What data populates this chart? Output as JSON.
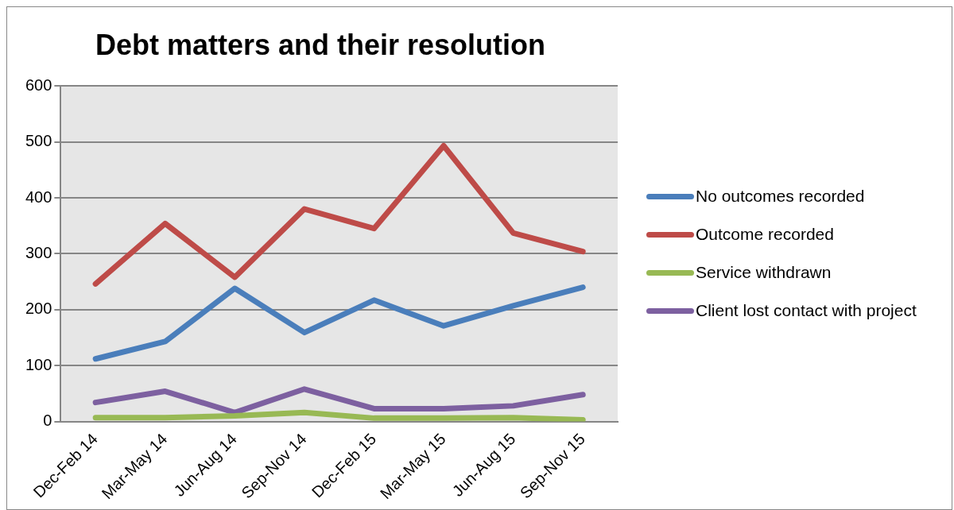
{
  "chart_data": {
    "type": "line",
    "title": "Debt matters and their resolution",
    "categories": [
      "Dec-Feb 14",
      "Mar-May 14",
      "Jun-Aug 14",
      "Sep-Nov 14",
      "Dec-Feb 15",
      "Mar-May 15",
      "Jun-Aug 15",
      "Sep-Nov 15"
    ],
    "series": [
      {
        "name": "No outcomes recorded",
        "color": "#4a7ebb",
        "values": [
          112,
          143,
          238,
          159,
          217,
          171,
          207,
          240
        ]
      },
      {
        "name": "Outcome recorded",
        "color": "#be4b48",
        "values": [
          246,
          354,
          258,
          380,
          345,
          493,
          337,
          304
        ]
      },
      {
        "name": "Service withdrawn",
        "color": "#98b954",
        "values": [
          7,
          7,
          10,
          16,
          6,
          6,
          7,
          3
        ]
      },
      {
        "name": "Client lost contact with project",
        "color": "#7d60a0",
        "values": [
          34,
          54,
          16,
          58,
          23,
          23,
          28,
          48
        ]
      }
    ],
    "ylim": [
      0,
      600
    ],
    "yticks": [
      0,
      100,
      200,
      300,
      400,
      500,
      600
    ],
    "grid": "y",
    "legend": "right",
    "marker": "none",
    "line_style": "solid"
  }
}
